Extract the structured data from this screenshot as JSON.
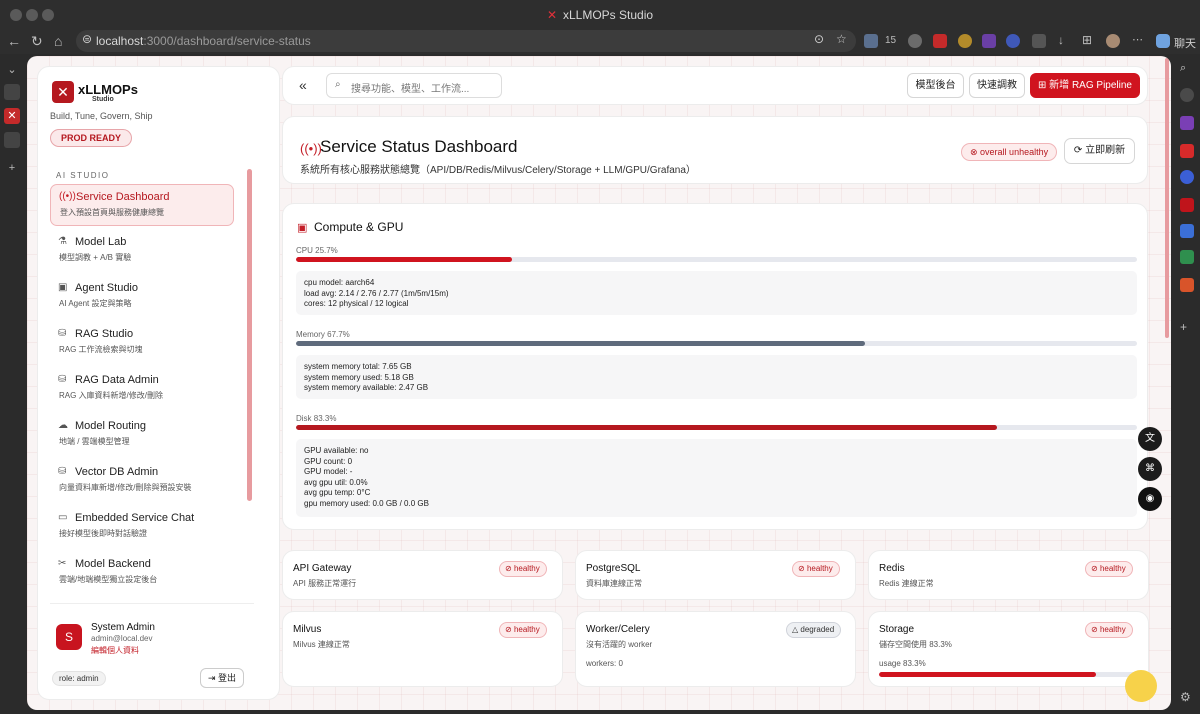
{
  "browser": {
    "window_title": "xLLMOPs Studio",
    "url_host": "localhost",
    "url_rest": ":3000/dashboard/service-status",
    "ext_badge": "15",
    "chat_label": "聊天"
  },
  "sidebar": {
    "brand": "xLLMOPs",
    "brand_sub": "Studio",
    "tagline": "Build, Tune, Govern, Ship",
    "env_badge": "PROD READY",
    "section_label": "AI STUDIO",
    "items": [
      {
        "title": "Service Dashboard",
        "sub": "登入預設首頁與服務健康總覽",
        "icon": "broadcast-icon"
      },
      {
        "title": "Model Lab",
        "sub": "模型調教 + A/B 實驗",
        "icon": "flask-icon"
      },
      {
        "title": "Agent Studio",
        "sub": "AI Agent 設定與策略",
        "icon": "chip-icon"
      },
      {
        "title": "RAG Studio",
        "sub": "RAG 工作流檢索與切塊",
        "icon": "database-icon"
      },
      {
        "title": "RAG Data Admin",
        "sub": "RAG 入庫資料新增/修改/刪除",
        "icon": "database-icon"
      },
      {
        "title": "Model Routing",
        "sub": "地端 / 雲端模型管理",
        "icon": "cloud-icon"
      },
      {
        "title": "Vector DB Admin",
        "sub": "向量資料庫新增/修改/刪除與預設安裝",
        "icon": "database-icon"
      },
      {
        "title": "Embedded Service Chat",
        "sub": "接好模型後即時對話驗證",
        "icon": "chat-icon"
      },
      {
        "title": "Model Backend",
        "sub": "雲端/地端模型獨立設定後台",
        "icon": "tools-icon"
      }
    ],
    "user": {
      "initial": "S",
      "name": "System Admin",
      "email": "admin@local.dev",
      "edit_link": "編輯個人資料",
      "role": "role: admin",
      "logout": "登出"
    }
  },
  "topbar": {
    "search_placeholder": "搜尋功能、模型、工作流...",
    "btn_backend": "模型後台",
    "btn_tune": "快速調教",
    "btn_new": "新增 RAG Pipeline"
  },
  "header": {
    "title": "Service Status Dashboard",
    "subtitle": "系統所有核心服務狀態總覽（API/DB/Redis/Milvus/Celery/Storage + LLM/GPU/Grafana）",
    "overall_status": "overall unhealthy",
    "refresh": "立即刷新"
  },
  "compute": {
    "title": "Compute & GPU",
    "cpu": {
      "label": "CPU 25.7%",
      "percent": 25.7,
      "color": "#d0141f",
      "lines": [
        "cpu model: aarch64",
        "load avg: 2.14 / 2.76 / 2.77 (1m/5m/15m)",
        "cores: 12 physical / 12 logical"
      ]
    },
    "memory": {
      "label": "Memory 67.7%",
      "percent": 67.7,
      "color": "#5f6b7c",
      "lines": [
        "system memory total: 7.65 GB",
        "system memory used: 5.18 GB",
        "system memory available: 2.47 GB"
      ]
    },
    "disk": {
      "label": "Disk 83.3%",
      "percent": 83.3,
      "color": "#b5181f",
      "lines": [
        "GPU available: no",
        "GPU count: 0",
        "GPU model: -",
        "avg gpu util: 0.0%",
        "avg gpu temp: 0°C",
        "gpu memory used: 0.0 GB / 0.0 GB"
      ]
    }
  },
  "services": [
    {
      "name": "API Gateway",
      "desc": "API 服務正常運行",
      "status": "healthy"
    },
    {
      "name": "PostgreSQL",
      "desc": "資料庫連線正常",
      "status": "healthy"
    },
    {
      "name": "Redis",
      "desc": "Redis 連線正常",
      "status": "healthy"
    },
    {
      "name": "Milvus",
      "desc": "Milvus 連線正常",
      "status": "healthy"
    },
    {
      "name": "Worker/Celery",
      "desc": "沒有活躍的 worker",
      "extra": "workers: 0",
      "status": "degraded"
    },
    {
      "name": "Storage",
      "desc": "儲存空間使用 83.3%",
      "extra": "usage 83.3%",
      "usage_percent": 83.3,
      "status": "healthy"
    }
  ],
  "colors": {
    "accent": "#d0141f",
    "brand": "#b5181f",
    "background": "#f9f4f4"
  }
}
